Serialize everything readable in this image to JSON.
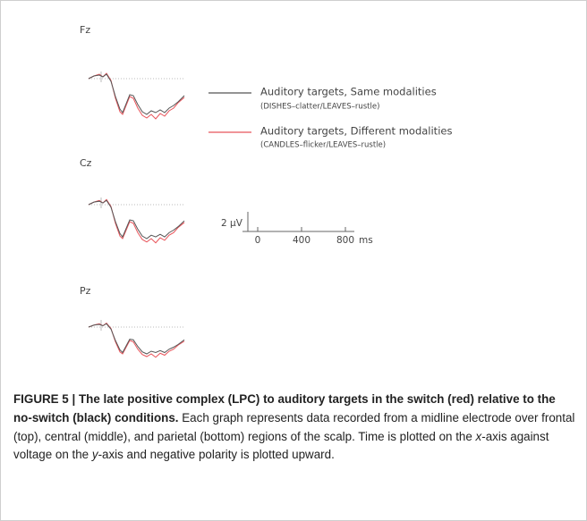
{
  "panels": [
    "Fz",
    "Cz",
    "Pz"
  ],
  "legend": [
    {
      "name": "Auditory targets, Same modalities",
      "detail": "(DISHES–clatter/LEAVES–rustle)",
      "color": "#555555"
    },
    {
      "name": "Auditory targets, Different modalities",
      "detail": "(CANDLES–flicker/LEAVES–rustle)",
      "color": "#e8545a"
    }
  ],
  "scale_bar": {
    "voltage": "2 μV",
    "ticks": [
      0,
      400,
      800
    ],
    "unit": "ms"
  },
  "caption": {
    "label": "FIGURE 5 |",
    "title": "The late positive complex (LPC) to auditory targets in the switch (red) relative to the no-switch (black) conditions.",
    "text": [
      "Each graph represents data recorded from a midline electrode over frontal (top), central (middle), and parietal (bottom) regions of the scalp. Time is plotted on the ",
      "x",
      "-axis against voltage on the ",
      "y",
      "-axis and negative polarity is plotted upward."
    ]
  }
}
